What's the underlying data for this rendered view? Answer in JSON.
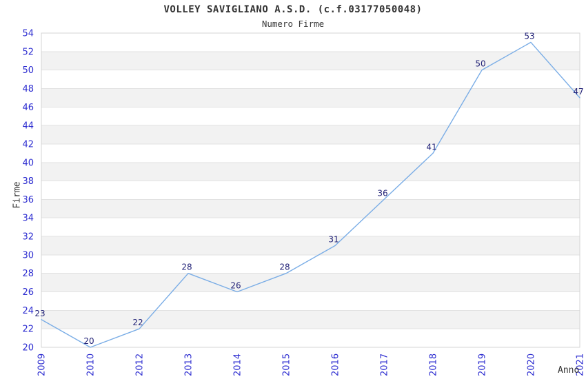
{
  "chart_data": {
    "type": "line",
    "title": "VOLLEY SAVIGLIANO A.S.D. (c.f.03177050048)",
    "subtitle": "Numero Firme",
    "xlabel": "Anno",
    "ylabel": "Firme",
    "categories": [
      "2009",
      "2010",
      "2012",
      "2013",
      "2014",
      "2015",
      "2016",
      "2017",
      "2018",
      "2019",
      "2020",
      "2021"
    ],
    "values": [
      23,
      20,
      22,
      28,
      26,
      28,
      31,
      36,
      41,
      50,
      53,
      47
    ],
    "ylim": [
      20,
      54
    ],
    "ytick_step": 2,
    "grid": true,
    "legend": "none",
    "band_striping": "alternating horizontal bands",
    "colors": {
      "line": "#7aade6",
      "tick_label": "#2c2cd0",
      "data_label": "#222277",
      "band_fill": "#f2f2f2",
      "band_fill_alt": "#ffffff",
      "grid_line": "#e2e2e2",
      "plot_border": "#d4d4d4",
      "text": "#333333",
      "background": "#ffffff"
    }
  }
}
